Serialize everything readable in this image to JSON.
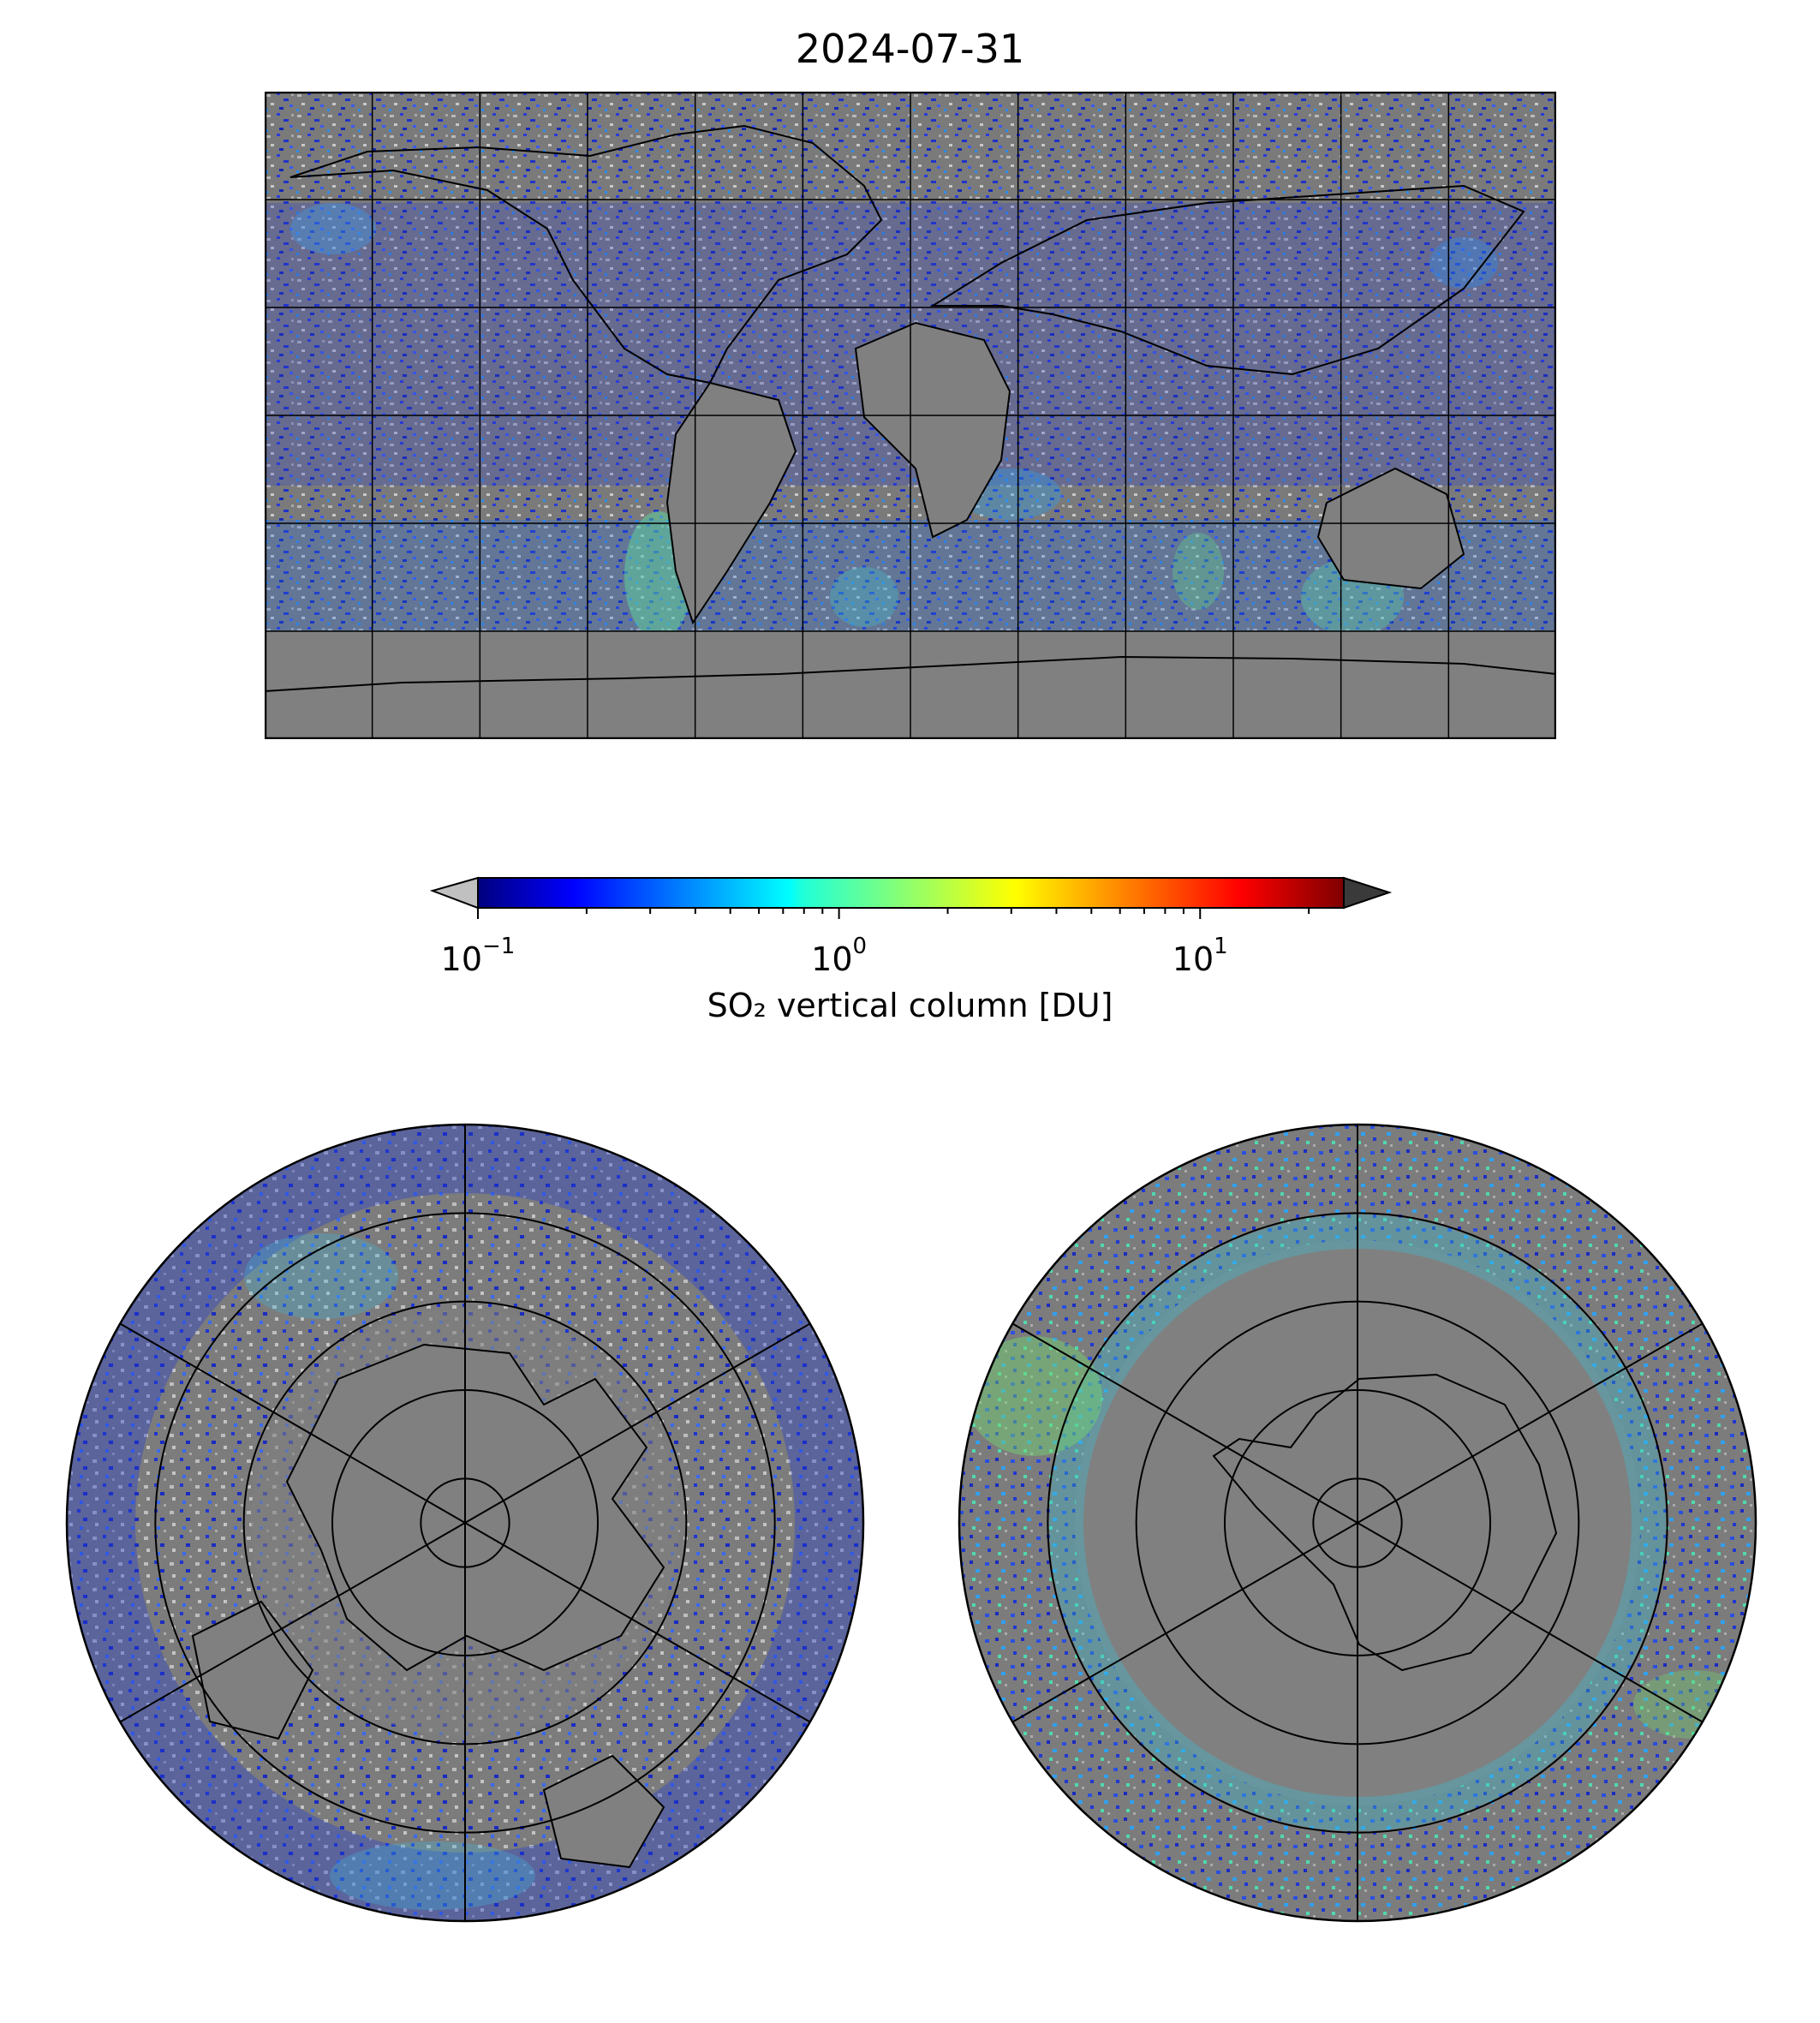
{
  "title": "2024-07-31",
  "colors": {
    "no_data": "#808080",
    "below_range": "#c0c0c0",
    "above_range": "#3a3a3a",
    "coast": "#000000",
    "grid": "#000000"
  },
  "colorbar": {
    "label": "SO₂ vertical column [DU]",
    "scale": "log",
    "colormap": "jet",
    "range": [
      0.1,
      25
    ],
    "extend": "both",
    "ticks": [
      {
        "base": "10",
        "exp": "−1",
        "value": 0.1
      },
      {
        "base": "10",
        "exp": "0",
        "value": 1
      },
      {
        "base": "10",
        "exp": "1",
        "value": 10
      }
    ]
  },
  "maps": {
    "main": {
      "projection": "equirectangular",
      "lon_range": [
        -180,
        180
      ],
      "lat_range": [
        -90,
        90
      ],
      "grid_lon_step": 30,
      "grid_lat_step": 30
    },
    "north": {
      "projection": "north polar stereographic",
      "grid_lat": [
        80,
        60,
        40,
        20
      ],
      "meridian_step": 60
    },
    "south": {
      "projection": "south polar stereographic",
      "grid_lat": [
        -80,
        -60,
        -40,
        -20
      ],
      "meridian_step": 60
    }
  }
}
